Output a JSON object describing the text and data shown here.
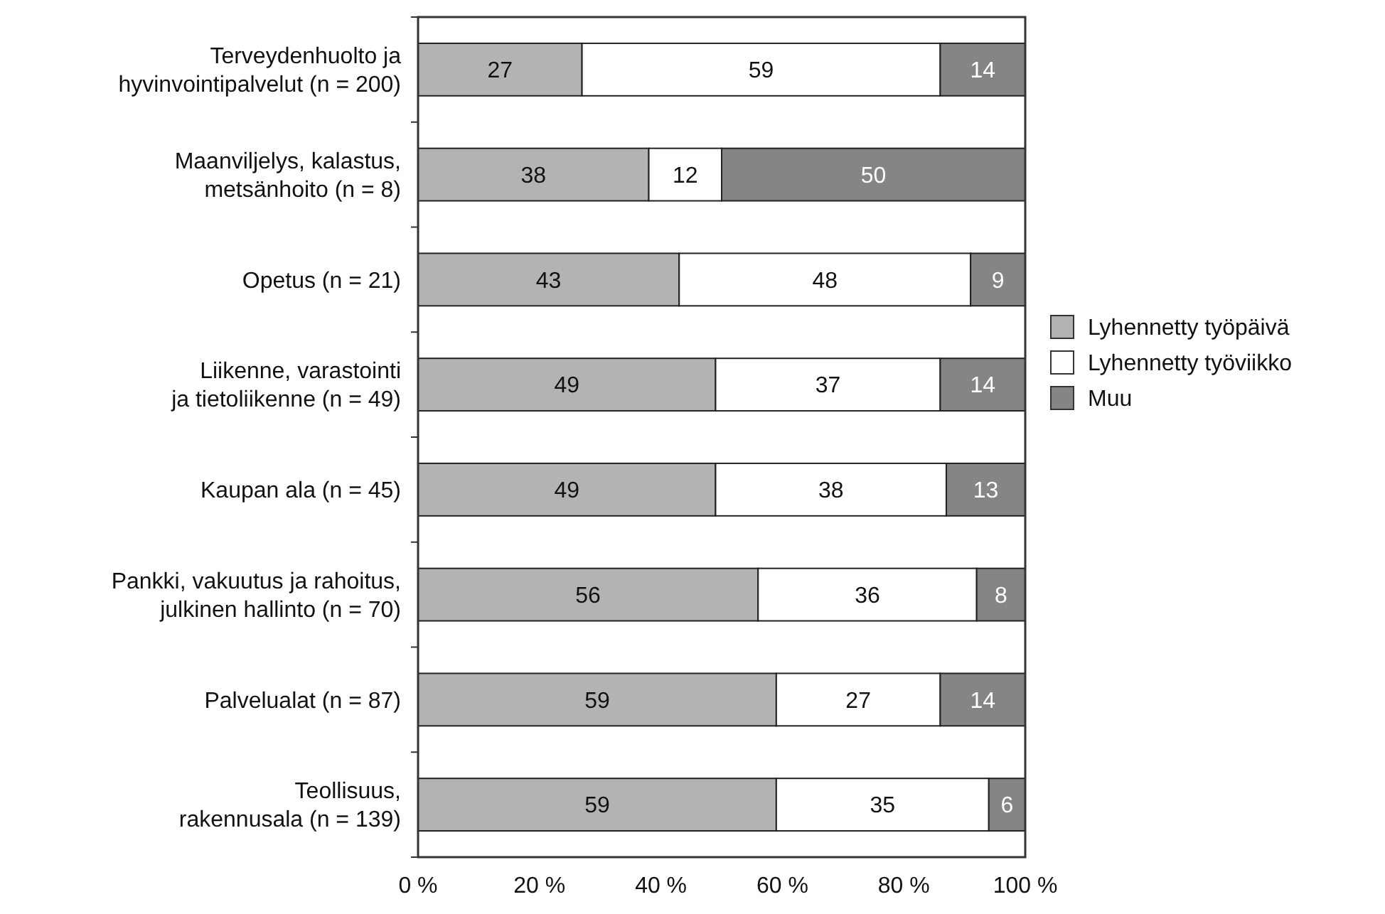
{
  "chart_data": {
    "type": "bar",
    "orientation": "horizontal",
    "stacked": true,
    "data_labels": true,
    "legend": "right",
    "categories": [
      "Terveydenhuolto ja\nhyvinvointipalvelut (n = 200)",
      "Maanviljelys, kalastus,\nmetsänhoito (n = 8)",
      "Opetus (n = 21)",
      "Liikenne, varastointi\nja tietoliikenne (n = 49)",
      "Kaupan ala (n = 45)",
      "Pankki, vakuutus ja rahoitus,\njulkinen hallinto (n = 70)",
      "Palvelualat (n = 87)",
      "Teollisuus,\nrakennusala (n = 139)"
    ],
    "series": [
      {
        "name": "Lyhennetty työpäivä",
        "color": "#b3b3b3",
        "values": [
          27,
          38,
          43,
          49,
          49,
          56,
          59,
          59
        ]
      },
      {
        "name": "Lyhennetty työviikko",
        "color": "#ffffff",
        "values": [
          59,
          12,
          48,
          37,
          38,
          36,
          27,
          35
        ]
      },
      {
        "name": "Muu",
        "color": "#858585",
        "values": [
          14,
          50,
          9,
          14,
          13,
          8,
          14,
          6
        ]
      }
    ],
    "xlim": [
      0,
      100
    ],
    "xticks": [
      {
        "value": 0,
        "label": "0 %"
      },
      {
        "value": 20,
        "label": "20 %"
      },
      {
        "value": 40,
        "label": "40 %"
      },
      {
        "value": 60,
        "label": "60 %"
      },
      {
        "value": 80,
        "label": "80 %"
      },
      {
        "value": 100,
        "label": "100 %"
      }
    ]
  }
}
